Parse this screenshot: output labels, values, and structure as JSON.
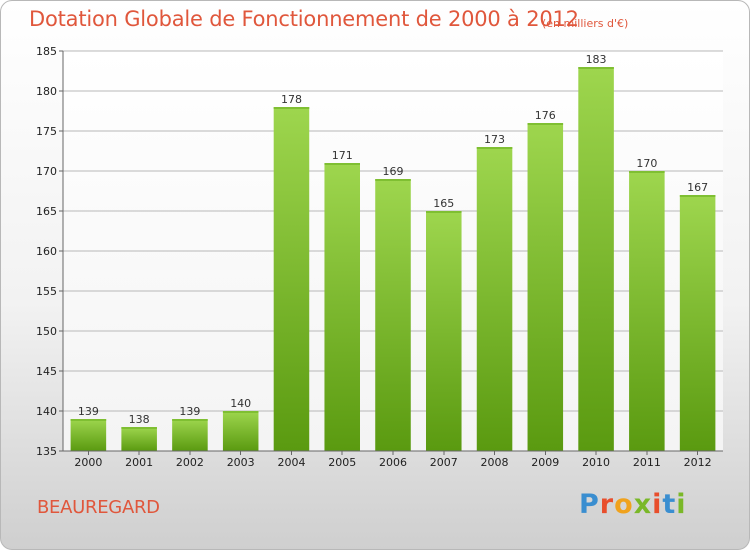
{
  "header": {
    "title": "Dotation Globale de Fonctionnement de 2000 à 2012",
    "subtitle": "(en milliers d'€)"
  },
  "footer": {
    "place": "BEAUREGARD",
    "logo_letters": [
      "P",
      "r",
      "o",
      "x",
      "i",
      "t",
      "i"
    ],
    "logo_colors": [
      "#3a8ed0",
      "#e84e2c",
      "#f0a21d",
      "#7ab828",
      "#e84e2c",
      "#3a8ed0",
      "#7ab828"
    ]
  },
  "colors": {
    "title": "#e0573c",
    "bar_top": "#9ed64e",
    "bar_bottom": "#5a9a10",
    "grid": "#b8b8b8"
  },
  "chart_data": {
    "type": "bar",
    "title": "Dotation Globale de Fonctionnement de 2000 à 2012",
    "subtitle": "(en milliers d'€)",
    "categories": [
      "2000",
      "2001",
      "2002",
      "2003",
      "2004",
      "2005",
      "2006",
      "2007",
      "2008",
      "2009",
      "2010",
      "2011",
      "2012"
    ],
    "values": [
      139,
      138,
      139,
      140,
      178,
      171,
      169,
      165,
      173,
      176,
      183,
      170,
      167
    ],
    "ylim": [
      135,
      185
    ],
    "yticks": [
      135,
      140,
      145,
      150,
      155,
      160,
      165,
      170,
      175,
      180,
      185
    ],
    "grid": true,
    "legend": "none"
  }
}
